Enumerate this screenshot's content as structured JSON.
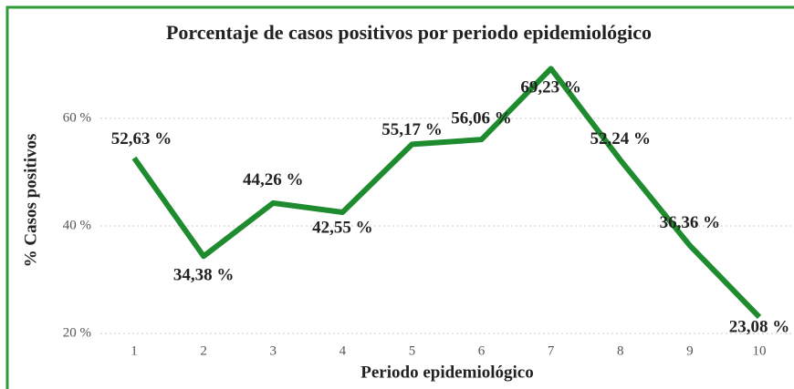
{
  "chart_data": {
    "type": "line",
    "title": "Porcentaje de casos positivos por periodo epidemiológico",
    "xlabel": "Periodo epidemiológico",
    "ylabel": "% Casos positivos",
    "categories": [
      "1",
      "2",
      "3",
      "4",
      "5",
      "6",
      "7",
      "8",
      "9",
      "10"
    ],
    "series": [
      {
        "name": "% Casos positivos",
        "color": "#1e8c2e",
        "values": [
          52.63,
          34.38,
          44.26,
          42.55,
          55.17,
          56.06,
          69.23,
          52.24,
          36.36,
          23.08
        ],
        "value_labels": [
          "52,63 %",
          "34,38 %",
          "44,26 %",
          "42,55 %",
          "55,17 %",
          "56,06 %",
          "69,23 %",
          "52,24 %",
          "36,36 %",
          "23,08 %"
        ]
      }
    ],
    "ylim": [
      18,
      72
    ],
    "yticks": [
      {
        "value": 20,
        "label": "20 %"
      },
      {
        "value": 40,
        "label": "40 %"
      },
      {
        "value": 60,
        "label": "60 %"
      }
    ],
    "grid": true
  }
}
